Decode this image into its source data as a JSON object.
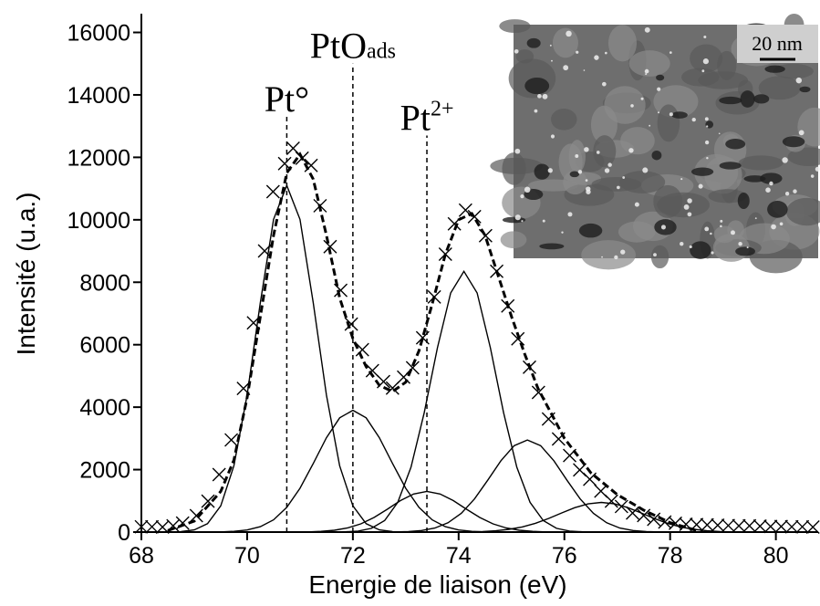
{
  "chart_data": {
    "type": "xps",
    "xlabel": "Energie de liaison (eV)",
    "ylabel": "Intensité (u.a.)",
    "xlim": [
      68,
      80.8
    ],
    "ylim": [
      0,
      16600
    ],
    "xticks": [
      68,
      70,
      72,
      74,
      76,
      78,
      80
    ],
    "yticks": [
      0,
      2000,
      4000,
      6000,
      8000,
      10000,
      12000,
      14000,
      16000
    ],
    "measured": {
      "x": [
        68.0,
        68.2,
        68.4,
        68.6,
        68.78,
        69.04,
        69.26,
        69.47,
        69.7,
        69.93,
        70.12,
        70.33,
        70.49,
        70.71,
        70.87,
        71.04,
        71.21,
        71.38,
        71.57,
        71.77,
        71.97,
        72.18,
        72.37,
        72.58,
        72.75,
        72.96,
        73.13,
        73.32,
        73.54,
        73.75,
        73.92,
        74.13,
        74.3,
        74.51,
        74.72,
        74.93,
        75.12,
        75.34,
        75.51,
        75.7,
        75.89,
        76.1,
        76.29,
        76.48,
        76.69,
        76.89,
        77.08,
        77.29,
        77.5,
        77.69,
        77.9,
        78.1,
        78.3,
        78.5,
        78.7,
        78.9,
        79.1,
        79.3,
        79.5,
        79.7,
        79.9,
        80.1,
        80.3,
        80.5,
        80.7
      ],
      "values": [
        170,
        170,
        160,
        200,
        290,
        525,
        990,
        1840,
        2950,
        4600,
        6700,
        9000,
        10900,
        11800,
        12290,
        11970,
        11740,
        10450,
        9140,
        7740,
        6660,
        5840,
        5170,
        4820,
        4610,
        4960,
        5260,
        6220,
        7530,
        8900,
        9870,
        10310,
        10100,
        9490,
        8350,
        7240,
        6190,
        5280,
        4470,
        3620,
        2980,
        2450,
        1990,
        1690,
        1310,
        990,
        820,
        610,
        530,
        410,
        320,
        280,
        250,
        240,
        230,
        220,
        210,
        200,
        200,
        190,
        180,
        180,
        170,
        170,
        160
      ],
      "color": "#000000"
    },
    "envelope": {
      "x": [
        68.5,
        69,
        69.5,
        69.75,
        70,
        70.25,
        70.5,
        70.75,
        71,
        71.25,
        71.5,
        71.75,
        72,
        72.25,
        72.5,
        72.75,
        73,
        73.25,
        73.5,
        73.75,
        74,
        74.25,
        74.5,
        74.75,
        75,
        75.25,
        75.5,
        76,
        76.5,
        77,
        77.5,
        78,
        78.5
      ],
      "values": [
        50,
        350,
        1300,
        2300,
        4300,
        6900,
        9500,
        11500,
        12100,
        11300,
        9500,
        7500,
        6200,
        5300,
        4700,
        4500,
        4800,
        5800,
        7300,
        8900,
        10000,
        10200,
        9500,
        8200,
        6900,
        5700,
        4600,
        3000,
        1900,
        1200,
        700,
        300,
        50
      ],
      "color": "#000000"
    },
    "components": [
      {
        "x": [
          68.75,
          69,
          69.25,
          69.5,
          69.75,
          70,
          70.25,
          70.5,
          70.75,
          71,
          71.25,
          71.5,
          71.75,
          72,
          72.25,
          72.5,
          72.75
        ],
        "values": [
          14,
          70,
          270,
          839,
          2120,
          4385,
          7348,
          10012,
          11100,
          10012,
          7348,
          4385,
          2120,
          839,
          270,
          70,
          14
        ]
      },
      {
        "x": [
          69.5,
          69.75,
          70,
          70.25,
          70.5,
          70.75,
          71,
          71.25,
          71.5,
          71.75,
          72,
          72.25,
          72.5,
          72.75,
          73,
          73.25,
          73.5,
          73.75,
          74,
          74.25,
          74.5
        ],
        "values": [
          7,
          22,
          66,
          171,
          393,
          792,
          1404,
          2196,
          3023,
          3658,
          3900,
          3658,
          3023,
          2196,
          1404,
          792,
          393,
          171,
          66,
          22,
          7
        ]
      },
      {
        "x": [
          70.9,
          71.15,
          71.4,
          71.65,
          71.9,
          72.15,
          72.4,
          72.65,
          72.9,
          73.15,
          73.4,
          73.65,
          73.9,
          74.15,
          74.4,
          74.65,
          74.9,
          75.15,
          75.4,
          75.65,
          75.9
        ],
        "values": [
          2,
          7,
          22,
          57,
          131,
          264,
          468,
          732,
          1008,
          1219,
          1300,
          1219,
          1008,
          732,
          468,
          264,
          131,
          57,
          22,
          7,
          2
        ]
      },
      {
        "x": [
          71.85,
          72.1,
          72.35,
          72.6,
          72.85,
          73.1,
          73.35,
          73.6,
          73.85,
          74.1,
          74.35,
          74.6,
          74.85,
          75.1,
          75.35,
          75.6,
          75.85,
          76.1,
          76.35
        ],
        "values": [
          8,
          33,
          119,
          367,
          952,
          2079,
          3824,
          5903,
          7657,
          8350,
          7657,
          5903,
          3824,
          2079,
          952,
          367,
          119,
          33,
          8
        ]
      },
      {
        "x": [
          72.8,
          73.05,
          73.3,
          73.55,
          73.8,
          74.05,
          74.3,
          74.55,
          74.8,
          75.05,
          75.3,
          75.55,
          75.8,
          76.05,
          76.3,
          76.55,
          76.8,
          77.05,
          77.3,
          77.55,
          77.8
        ],
        "values": [
          5,
          17,
          50,
          130,
          297,
          599,
          1062,
          1661,
          2286,
          2767,
          2950,
          2767,
          2286,
          1661,
          1062,
          599,
          297,
          130,
          50,
          17,
          5
        ]
      },
      {
        "x": [
          74.2,
          74.45,
          74.7,
          74.95,
          75.2,
          75.45,
          75.7,
          75.95,
          76.2,
          76.45,
          76.7,
          76.95,
          77.2,
          77.45,
          77.7,
          77.95,
          78.2,
          78.45,
          78.7,
          78.95,
          79.2
        ],
        "values": [
          7,
          18,
          42,
          87,
          163,
          280,
          435,
          613,
          782,
          904,
          950,
          904,
          782,
          613,
          435,
          280,
          163,
          87,
          42,
          18,
          7
        ]
      }
    ],
    "markers": [
      {
        "x": 70.75,
        "ytop": 13300,
        "label": "Pt°"
      },
      {
        "x": 72.0,
        "ytop": 15000,
        "label": "PtO",
        "sub": "ads"
      },
      {
        "x": 73.4,
        "ytop": 12700,
        "label": "Pt",
        "sup": "2+"
      }
    ],
    "inset": {
      "scale_bar": "20 nm"
    }
  }
}
